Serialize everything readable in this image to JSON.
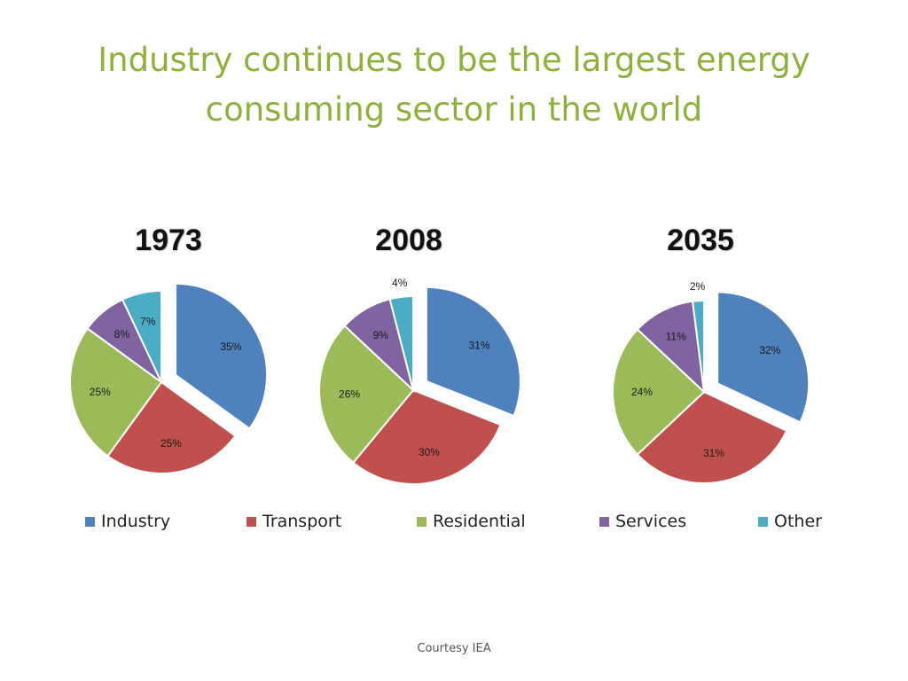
{
  "slide": {
    "title_line1": "Industry continues to be the largest energy",
    "title_line2": "consuming sector in the world",
    "footer": "Courtesy IEA"
  },
  "colors": {
    "Industry": "#4f81bd",
    "Transport": "#c0504d",
    "Residential": "#9bbb59",
    "Services": "#8064a2",
    "Other": "#4bacc6"
  },
  "chart_data": [
    {
      "type": "pie",
      "title": "1973",
      "categories": [
        "Industry",
        "Transport",
        "Residential",
        "Services",
        "Other"
      ],
      "values": [
        35,
        25,
        25,
        8,
        7
      ],
      "labels": [
        "35%",
        "25%",
        "25%",
        "8%",
        "7%"
      ],
      "exploded": "Industry"
    },
    {
      "type": "pie",
      "title": "2008",
      "categories": [
        "Industry",
        "Transport",
        "Residential",
        "Services",
        "Other"
      ],
      "values": [
        31,
        30,
        26,
        9,
        4
      ],
      "labels": [
        "31%",
        "30%",
        "26%",
        "9%",
        "4%"
      ],
      "exploded": "Industry"
    },
    {
      "type": "pie",
      "title": "2035",
      "categories": [
        "Industry",
        "Transport",
        "Residential",
        "Services",
        "Other"
      ],
      "values": [
        32,
        31,
        24,
        11,
        2
      ],
      "labels": [
        "32%",
        "31%",
        "24%",
        "11%",
        "2%"
      ],
      "exploded": "Industry"
    }
  ],
  "legend": {
    "position": "bottom",
    "items": [
      "Industry",
      "Transport",
      "Residential",
      "Services",
      "Other"
    ]
  }
}
